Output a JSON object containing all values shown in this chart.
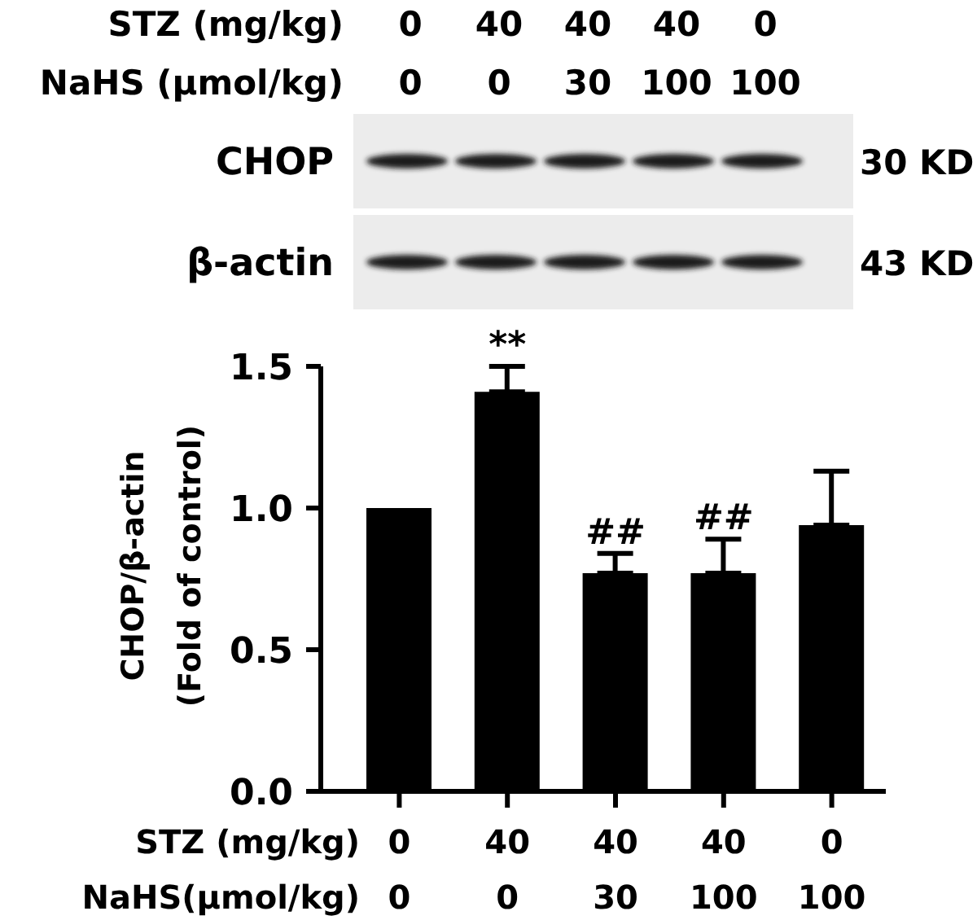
{
  "chart_data": [
    {
      "type": "other",
      "categories": [
        "0\n0",
        "40\n0",
        "40\n30",
        "40\n100",
        "0\n100"
      ],
      "y_categories": [
        "CHOP",
        "β-actin"
      ],
      "y2_categories": [
        "30 KD",
        "43 KD"
      ],
      "annotations": [
        "STZ (mg/kg)",
        "NaHS (μmol/kg)"
      ]
    },
    {
      "type": "bar",
      "ylabel": "CHOP/β-actin\n(Fold of control)",
      "categories": [
        "0\n0",
        "40\n0",
        "40\n30",
        "40\n100",
        "0\n100"
      ],
      "values": [
        1.0,
        1.41,
        0.77,
        0.77,
        0.94
      ],
      "errors": [
        null,
        [
          1.41,
          1.5
        ],
        [
          0.77,
          0.84
        ],
        [
          0.77,
          0.89
        ],
        [
          0.94,
          1.13
        ]
      ],
      "color": "#000000",
      "ylim": [
        0,
        1.5
      ],
      "yticks": [
        {
          "value": 0,
          "label": "0.0"
        },
        {
          "value": 0.5,
          "label": "0.5"
        },
        {
          "value": 1,
          "label": "1.0"
        },
        {
          "value": 1.5,
          "label": "1.5"
        }
      ],
      "annotations": [
        "STZ (mg/kg)",
        "NaHS(μmol/kg)",
        {
          "text": "**",
          "x": "40\n0",
          "y": 1.5
        },
        {
          "text": "##",
          "x": "40\n30",
          "y": 0.84
        },
        {
          "text": "##",
          "x": "40\n100",
          "y": 0.89
        }
      ]
    }
  ]
}
